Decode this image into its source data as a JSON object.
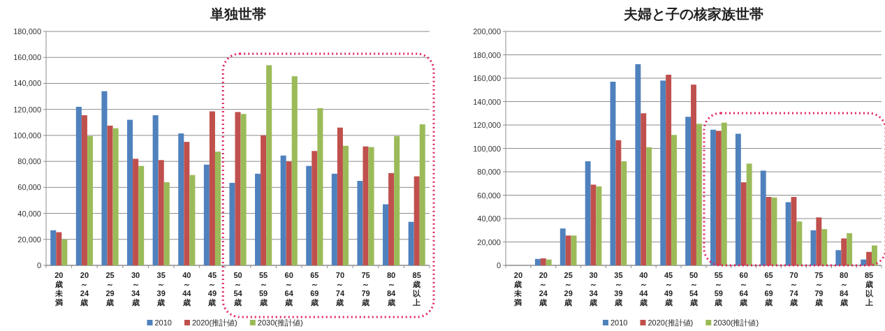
{
  "chart_data": [
    {
      "type": "bar",
      "title": "単独世帯",
      "categories": [
        "20歳未満",
        "20～24歳",
        "25～29歳",
        "30～34歳",
        "35～39歳",
        "40～44歳",
        "45～49歳",
        "50～54歳",
        "55～59歳",
        "60～64歳",
        "65～69歳",
        "70～74歳",
        "75～79歳",
        "80～84歳",
        "85歳以上"
      ],
      "series": [
        {
          "name": "2010",
          "color": "#4f81bd",
          "values": [
            27000,
            122000,
            134000,
            112000,
            115500,
            101500,
            77500,
            63500,
            70500,
            84500,
            76500,
            70500,
            65000,
            47000,
            33500
          ]
        },
        {
          "name": "2020(推計値)",
          "color": "#c0504d",
          "values": [
            25500,
            115500,
            107500,
            82000,
            81000,
            95000,
            118500,
            118000,
            100000,
            80000,
            88000,
            106000,
            91500,
            71000,
            68500
          ]
        },
        {
          "name": "2030(推計値)",
          "color": "#9bbb59",
          "values": [
            20000,
            99500,
            105500,
            76500,
            64000,
            69500,
            87500,
            116500,
            154000,
            145500,
            121000,
            92000,
            91000,
            99500,
            108500
          ]
        }
      ],
      "ylim": [
        0,
        180000
      ],
      "yticks": [
        {
          "value": 0,
          "label": "0"
        },
        {
          "value": 20000,
          "label": "20,000"
        },
        {
          "value": 40000,
          "label": "40,000"
        },
        {
          "value": 60000,
          "label": "60,000"
        },
        {
          "value": 80000,
          "label": "80,000"
        },
        {
          "value": 100000,
          "label": "100,000"
        },
        {
          "value": 120000,
          "label": "120,000"
        },
        {
          "value": 140000,
          "label": "140,000"
        },
        {
          "value": 160000,
          "label": "160,000"
        },
        {
          "value": 180000,
          "label": "180,000"
        }
      ],
      "grid": "y",
      "legend": "bottom"
    },
    {
      "type": "bar",
      "title": "夫婦と子の核家族世帯",
      "categories": [
        "20歳未満",
        "20～24歳",
        "25～29歳",
        "30～34歳",
        "35～39歳",
        "40～44歳",
        "45～49歳",
        "50～54歳",
        "55～59歳",
        "60～64歳",
        "65～69歳",
        "70～74歳",
        "75～79歳",
        "80～84歳",
        "85歳以上"
      ],
      "series": [
        {
          "name": "2010",
          "color": "#4f81bd",
          "values": [
            0,
            5500,
            31500,
            89000,
            157000,
            172000,
            158000,
            127000,
            116000,
            112500,
            81000,
            54000,
            30000,
            13000,
            5000
          ]
        },
        {
          "name": "2020(推計値)",
          "color": "#c0504d",
          "values": [
            0,
            6000,
            25500,
            69000,
            107000,
            130000,
            163000,
            154500,
            115000,
            71000,
            58500,
            58500,
            41000,
            23000,
            11500
          ]
        },
        {
          "name": "2030(推計値)",
          "color": "#9bbb59",
          "values": [
            0,
            5000,
            25500,
            67500,
            89000,
            101000,
            111500,
            121000,
            122000,
            87000,
            58000,
            37500,
            31000,
            27500,
            17000
          ]
        }
      ],
      "ylim": [
        0,
        200000
      ],
      "yticks": [
        {
          "value": 0,
          "label": "0"
        },
        {
          "value": 20000,
          "label": "20,000"
        },
        {
          "value": 40000,
          "label": "40,000"
        },
        {
          "value": 60000,
          "label": "60,000"
        },
        {
          "value": 80000,
          "label": "80,000"
        },
        {
          "value": 100000,
          "label": "100,000"
        },
        {
          "value": 120000,
          "label": "120,000"
        },
        {
          "value": 140000,
          "label": "140,000"
        },
        {
          "value": 160000,
          "label": "160,000"
        },
        {
          "value": 180000,
          "label": "180,000"
        },
        {
          "value": 200000,
          "label": "200,000"
        }
      ],
      "grid": "y",
      "legend": "bottom"
    }
  ]
}
